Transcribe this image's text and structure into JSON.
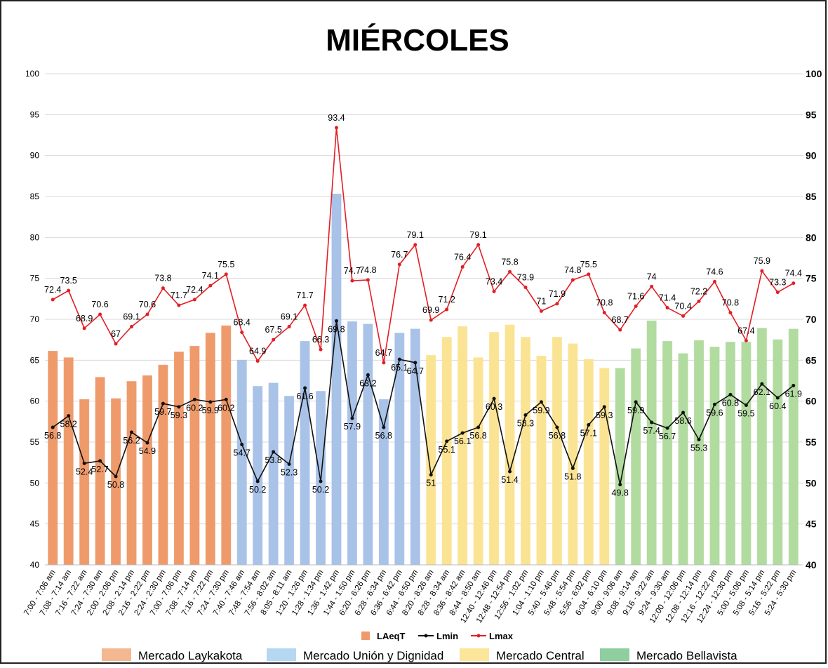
{
  "chart_data": {
    "type": "combo",
    "title": "MIÉRCOLES",
    "categories": [
      "7:00 - 7:06 am",
      "7:08 - 7:14 am",
      "7:16 - 7:22 am",
      "7:24 - 7:30 am",
      "2:00 - 2:06 pm",
      "2:08 - 2:14 pm",
      "2:16 - 2:22 pm",
      "2:24 - 2:30 pm",
      "7:00 - 7:06 pm",
      "7:08 - 7:14 pm",
      "7:16 - 7:22 pm",
      "7:24 - 7:30 pm",
      "7:40 - 7:46 am",
      "7:48 - 7:54 am",
      "7:56 - 8:02 am",
      "8:05 - 8:11 am",
      "1:20 - 1:26 pm",
      "1:28 - 1:34 pm",
      "1:36 - 1:42 pm",
      "1:44 - 1:50 pm",
      "6:20 - 6:26 pm",
      "6:28 - 6:34 pm",
      "6:36 - 6:42 pm",
      "6:44 - 6:50 pm",
      "8:20 - 8:26 am",
      "8:28 - 8:34 am",
      "8:36 - 8:42 am",
      "8:44 - 8:50 am",
      "12:40 - 12:46 pm",
      "12:48 - 12:54 pm",
      "12:56 - 1:02 pm",
      "1:04 - 1:10 pm",
      "5:40 - 5:46 pm",
      "5:48 - 5:54 pm",
      "5:56 - 6:02 pm",
      "6:04 - 6:10 pm",
      "9:00 - 9:06 am",
      "9:08 - 9:14 am",
      "9:16 - 9:22 am",
      "9:24 - 9:30 am",
      "12:00 - 12:06 pm",
      "12:08 - 12:14 pm",
      "12:16 - 12:22 pm",
      "12:24 - 12:30 pm",
      "5:00 - 5:06 pm",
      "5:08 - 5:14 pm",
      "5:16 - 5:22 pm",
      "5:24 - 5:30 pm"
    ],
    "series": [
      {
        "name": "LAeqT",
        "type": "bar",
        "color": "#ef9a6a",
        "values": [
          66.1,
          65.3,
          60.2,
          62.9,
          60.3,
          62.4,
          63.1,
          64.4,
          66,
          66.7,
          68.3,
          69.2,
          65,
          61.8,
          62.2,
          60.6,
          67.3,
          61.2,
          85.3,
          69.7,
          69.4,
          60.2,
          68.3,
          68.8,
          65.6,
          67.8,
          69.1,
          65.3,
          68.4,
          69.3,
          67.8,
          65.5,
          67.8,
          67,
          65.1,
          64,
          64,
          66.4,
          69.8,
          67.3,
          65.8,
          67.4,
          66.6,
          67.2,
          67.2,
          68.9,
          67.5,
          68.8
        ]
      },
      {
        "name": "Lmin",
        "type": "line",
        "color": "#111111",
        "values": [
          56.8,
          58.2,
          52.4,
          52.7,
          50.8,
          56.2,
          54.9,
          59.7,
          59.3,
          60.2,
          59.9,
          60.2,
          54.7,
          50.2,
          53.8,
          52.3,
          61.6,
          50.2,
          69.8,
          57.9,
          63.2,
          56.8,
          65.1,
          64.7,
          51,
          55.1,
          56.1,
          56.8,
          60.3,
          51.4,
          58.3,
          59.9,
          56.8,
          51.8,
          57.1,
          59.3,
          49.8,
          59.9,
          57.4,
          56.7,
          58.6,
          55.3,
          59.6,
          60.8,
          59.5,
          62.1,
          60.4,
          61.9
        ]
      },
      {
        "name": "Lmax",
        "type": "line",
        "color": "#e31e24",
        "values": [
          72.4,
          73.5,
          68.9,
          70.6,
          67,
          69.1,
          70.6,
          73.8,
          71.7,
          72.4,
          74.1,
          75.5,
          68.4,
          64.9,
          67.5,
          69.1,
          71.7,
          66.3,
          93.4,
          74.7,
          74.8,
          64.7,
          76.7,
          79.1,
          69.9,
          71.2,
          76.4,
          79.1,
          73.4,
          75.8,
          73.9,
          71,
          71.9,
          74.8,
          75.5,
          70.8,
          68.7,
          71.6,
          74,
          71.4,
          70.4,
          72.2,
          74.6,
          70.8,
          67.4,
          75.9,
          73.3,
          74.4
        ]
      }
    ],
    "groups": [
      {
        "name": "Mercado Laykakota",
        "color": "#f4b890",
        "bar_color": "#ef9a6a",
        "count": 12
      },
      {
        "name": "Mercado Unión y Dignidad",
        "color": "#b4d7f2",
        "bar_color": "#a9c2e8",
        "count": 12
      },
      {
        "name": "Mercado Central",
        "color": "#fbe699",
        "bar_color": "#fbe394",
        "count": 12
      },
      {
        "name": "Mercado Bellavista",
        "color": "#8fcf9f",
        "bar_color": "#b2dba0",
        "count": 12
      }
    ],
    "ylim": [
      40,
      100
    ],
    "yticks": [
      40,
      45,
      50,
      55,
      60,
      65,
      70,
      75,
      80,
      85,
      90,
      95,
      100
    ],
    "y2lim": [
      40,
      100
    ],
    "y2ticks": [
      40,
      45,
      50,
      55,
      60,
      65,
      70,
      75,
      80,
      85,
      90,
      95,
      100
    ],
    "grid": true
  }
}
